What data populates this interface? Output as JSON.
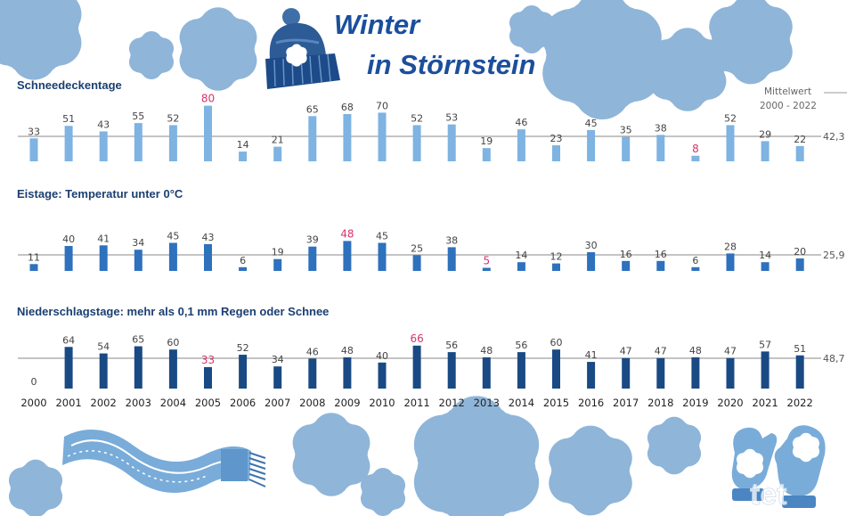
{
  "title": {
    "line1": "Winter",
    "line2": "in Störnstein"
  },
  "average_note": {
    "line1": "Mittelwert",
    "line2": "2000 - 2022"
  },
  "watermark": "tet",
  "colors": {
    "title": "#1b4f9c",
    "section_title": "#1b3f72",
    "highlight": "#d6336c",
    "snow_bar": "#7eb3e2",
    "frost_bar": "#2e71bd",
    "precip_bar": "#1a4a84",
    "decoration": "#8fb5d9"
  },
  "icons": [
    "snowflake-icon",
    "beanie-hat-icon",
    "scarf-icon",
    "mittens-icon"
  ],
  "chart_data": [
    {
      "type": "bar",
      "title": "Schneedeckentage",
      "categories": [
        "2000",
        "2001",
        "2002",
        "2003",
        "2004",
        "2005",
        "2006",
        "2007",
        "2008",
        "2009",
        "2010",
        "2011",
        "2012",
        "2013",
        "2014",
        "2015",
        "2016",
        "2017",
        "2018",
        "2019",
        "2020",
        "2021",
        "2022"
      ],
      "values": [
        33,
        51,
        43,
        55,
        52,
        80,
        14,
        21,
        65,
        68,
        70,
        52,
        53,
        19,
        46,
        23,
        45,
        35,
        38,
        8,
        52,
        29,
        22
      ],
      "highlighted": [
        "80",
        "8"
      ],
      "average": 42.3,
      "average_label": "42,3",
      "color": "#7eb3e2"
    },
    {
      "type": "bar",
      "title": "Eistage: Temperatur unter 0°C",
      "categories": [
        "2000",
        "2001",
        "2002",
        "2003",
        "2004",
        "2005",
        "2006",
        "2007",
        "2008",
        "2009",
        "2010",
        "2011",
        "2012",
        "2013",
        "2014",
        "2015",
        "2016",
        "2017",
        "2018",
        "2019",
        "2020",
        "2021",
        "2022"
      ],
      "values": [
        11,
        40,
        41,
        34,
        45,
        43,
        6,
        19,
        39,
        48,
        45,
        25,
        38,
        5,
        14,
        12,
        30,
        16,
        16,
        6,
        28,
        14,
        20
      ],
      "highlighted": [
        "48",
        "5"
      ],
      "average": 25.9,
      "average_label": "25,9",
      "color": "#2e71bd"
    },
    {
      "type": "bar",
      "title": "Niederschlagstage: mehr als 0,1 mm Regen oder Schnee",
      "categories": [
        "2000",
        "2001",
        "2002",
        "2003",
        "2004",
        "2005",
        "2006",
        "2007",
        "2008",
        "2009",
        "2010",
        "2011",
        "2012",
        "2013",
        "2014",
        "2015",
        "2016",
        "2017",
        "2018",
        "2019",
        "2020",
        "2021",
        "2022"
      ],
      "values": [
        0,
        64,
        54,
        65,
        60,
        33,
        52,
        34,
        46,
        48,
        40,
        66,
        56,
        48,
        56,
        60,
        41,
        47,
        47,
        48,
        47,
        57,
        51
      ],
      "highlighted": [
        "66",
        "33"
      ],
      "average": 48.7,
      "average_label": "48,7",
      "color": "#1a4a84"
    }
  ]
}
